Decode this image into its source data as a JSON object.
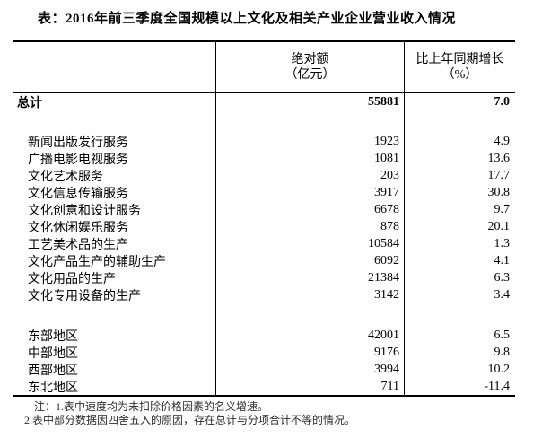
{
  "title": "表：2016年前三季度全国规模以上文化及相关产业企业营业收入情况",
  "colors": {
    "background": "#ffffff",
    "border": "#000000",
    "text": "#000000"
  },
  "table": {
    "header": {
      "value_col_line1": "绝对额",
      "value_col_line2": "（亿元）",
      "growth_col_line1": "比上年同期增长",
      "growth_col_line2": "（%）"
    },
    "total_row": {
      "label": "总计",
      "value": "55881",
      "growth": "7.0"
    },
    "category_rows": [
      {
        "label": "新闻出版发行服务",
        "value": "1923",
        "growth": "4.9"
      },
      {
        "label": "广播电影电视服务",
        "value": "1081",
        "growth": "13.6"
      },
      {
        "label": "文化艺术服务",
        "value": "203",
        "growth": "17.7"
      },
      {
        "label": "文化信息传输服务",
        "value": "3917",
        "growth": "30.8"
      },
      {
        "label": "文化创意和设计服务",
        "value": "6678",
        "growth": "9.7"
      },
      {
        "label": "文化休闲娱乐服务",
        "value": "878",
        "growth": "20.1"
      },
      {
        "label": "工艺美术品的生产",
        "value": "10584",
        "growth": "1.3"
      },
      {
        "label": "文化产品生产的辅助生产",
        "value": "6092",
        "growth": "4.1"
      },
      {
        "label": "文化用品的生产",
        "value": "21384",
        "growth": "6.3"
      },
      {
        "label": "文化专用设备的生产",
        "value": "3142",
        "growth": "3.4"
      }
    ],
    "region_rows": [
      {
        "label": "东部地区",
        "value": "42001",
        "growth": "6.5"
      },
      {
        "label": "中部地区",
        "value": "9176",
        "growth": "9.8"
      },
      {
        "label": "西部地区",
        "value": "3994",
        "growth": "10.2"
      },
      {
        "label": "东北地区",
        "value": "711",
        "growth": "-11.4"
      }
    ]
  },
  "notes": {
    "line1": "注：1.表中速度均为未扣除价格因素的名义增速。",
    "line2": "2.表中部分数据因四舍五入的原因，存在总计与分项合计不等的情况。"
  }
}
